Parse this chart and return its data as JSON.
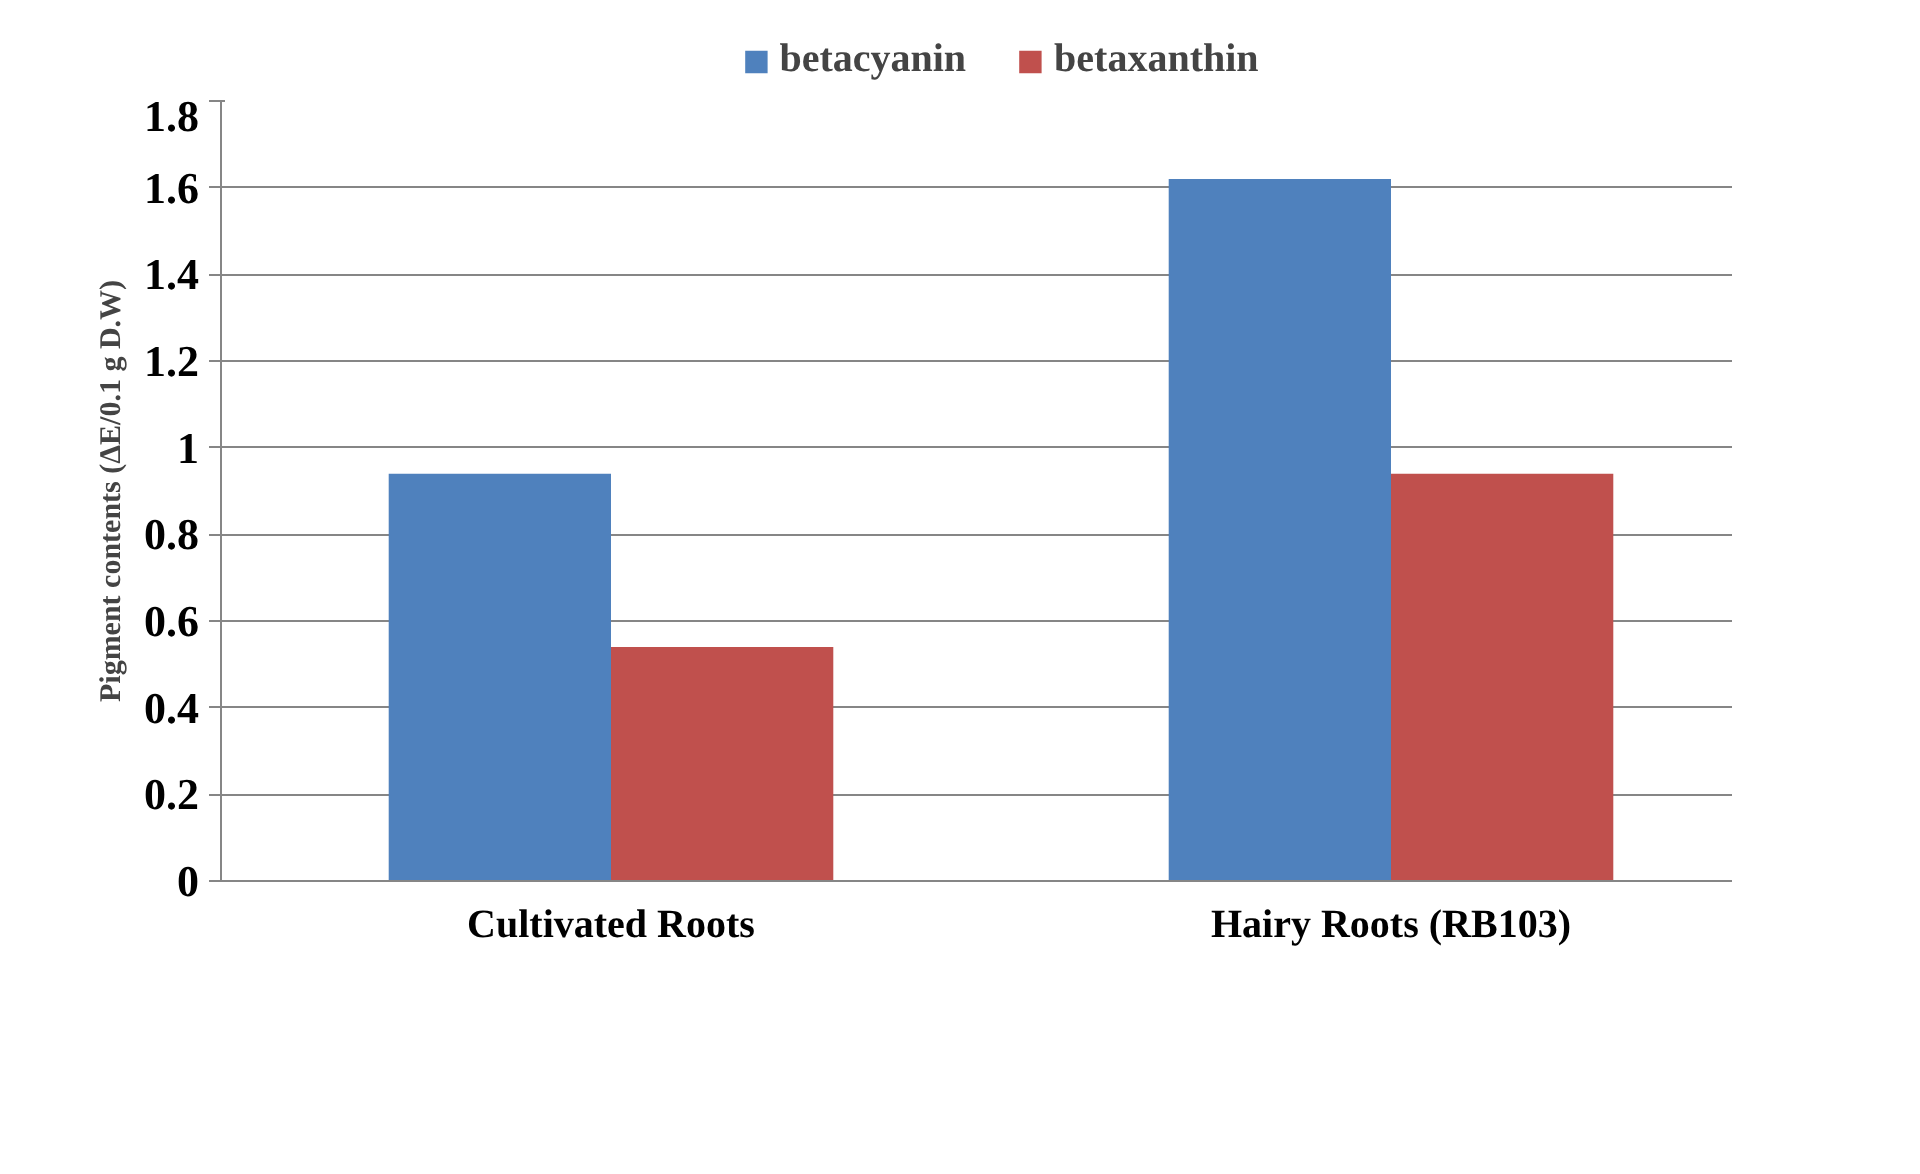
{
  "chart_data": {
    "type": "bar",
    "ylabel": "Pigment contents (ΔE/0.1 g D.W)",
    "categories": [
      "Cultivated Roots",
      "Hairy Roots (RB103)"
    ],
    "series": [
      {
        "name": "betacyanin",
        "color": "#4f81bd",
        "values": [
          0.94,
          1.62
        ]
      },
      {
        "name": "betaxanthin",
        "color": "#c0504d",
        "values": [
          0.54,
          0.94
        ]
      }
    ],
    "ylim": [
      0,
      1.8
    ],
    "yticks": [
      0,
      0.2,
      0.4,
      0.6,
      0.8,
      1,
      1.2,
      1.4,
      1.6,
      1.8
    ],
    "grid": "y",
    "legend": "top"
  }
}
